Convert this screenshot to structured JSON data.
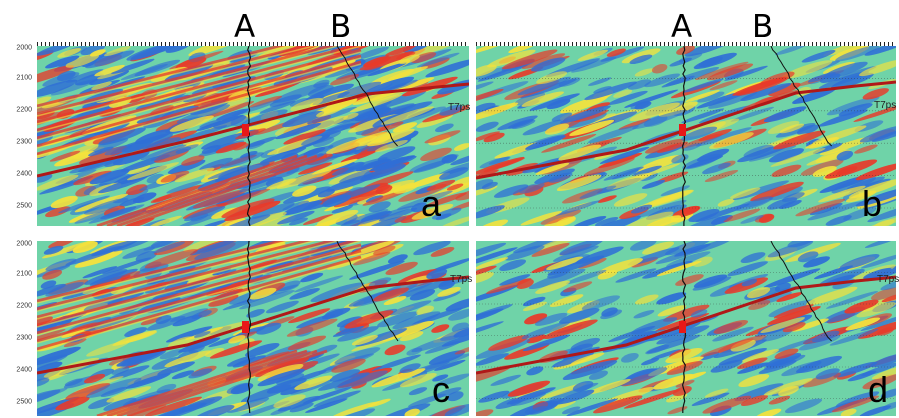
{
  "well_labels": {
    "a": "A",
    "b": "B"
  },
  "horizon_label": "T7ps",
  "y_axis_ticks": [
    "2000",
    "2100",
    "2200",
    "2300",
    "2400",
    "2500"
  ],
  "panels": [
    {
      "id": "a",
      "letter": "a"
    },
    {
      "id": "b",
      "letter": "b"
    },
    {
      "id": "c",
      "letter": "c"
    },
    {
      "id": "d",
      "letter": "d"
    }
  ],
  "colors": {
    "background": "#6fd3a8",
    "trough": "#2f6fd6",
    "peak": "#e83a2a",
    "side_lobe": "#f4e23c",
    "horizon": "#b01818",
    "well": "#111111",
    "marker": "#e81818"
  }
}
